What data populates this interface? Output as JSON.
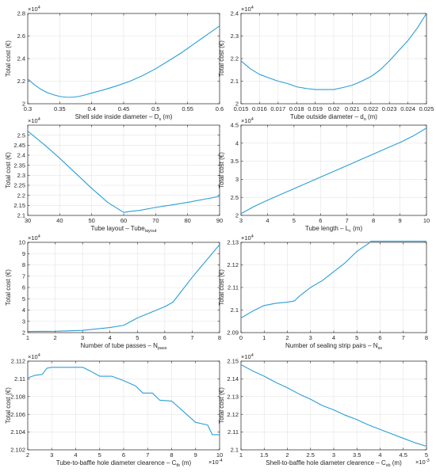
{
  "chart_data": [
    {
      "type": "line",
      "xlabel": "Shell side inside diameter – D",
      "xlabel_sub": "s",
      "xlabel_tail": " (m)",
      "ylabel": "Total cost (€)",
      "y_exponent": "4",
      "xlim": [
        0.3,
        0.6
      ],
      "ylim": [
        2.0,
        2.8
      ],
      "xticks": [
        0.3,
        0.35,
        0.4,
        0.45,
        0.5,
        0.55,
        0.6
      ],
      "xtick_labels": [
        "0.3",
        "0.35",
        "0.4",
        "0.45",
        "0.5",
        "0.55",
        "0.6"
      ],
      "yticks": [
        2.0,
        2.2,
        2.4,
        2.6,
        2.8
      ],
      "ytick_labels": [
        "2",
        "2.2",
        "2.4",
        "2.6",
        "2.8"
      ],
      "grid": true,
      "color": "#2a9fd6",
      "x": [
        0.3,
        0.31,
        0.32,
        0.33,
        0.34,
        0.35,
        0.36,
        0.37,
        0.38,
        0.39,
        0.4,
        0.42,
        0.44,
        0.46,
        0.48,
        0.5,
        0.52,
        0.54,
        0.56,
        0.58,
        0.6
      ],
      "y": [
        2.22,
        2.17,
        2.13,
        2.1,
        2.08,
        2.065,
        2.058,
        2.058,
        2.065,
        2.078,
        2.095,
        2.125,
        2.16,
        2.2,
        2.25,
        2.31,
        2.38,
        2.45,
        2.53,
        2.61,
        2.69
      ]
    },
    {
      "type": "line",
      "xlabel": "Tube outside diameter – d",
      "xlabel_sub": "o",
      "xlabel_tail": " (m)",
      "ylabel": "Total cost (€)",
      "y_exponent": "4",
      "xlim": [
        0.015,
        0.025
      ],
      "ylim": [
        2.0,
        2.4
      ],
      "xticks": [
        0.015,
        0.016,
        0.017,
        0.018,
        0.019,
        0.02,
        0.021,
        0.022,
        0.023,
        0.024,
        0.025
      ],
      "xtick_labels": [
        "0.015",
        "0.016",
        "0.017",
        "0.018",
        "0.019",
        "0.02",
        "0.021",
        "0.022",
        "0.023",
        "0.024",
        "0.025"
      ],
      "yticks": [
        2.0,
        2.1,
        2.2,
        2.3,
        2.4
      ],
      "ytick_labels": [
        "2",
        "2.1",
        "2.2",
        "2.3",
        "2.4"
      ],
      "grid": true,
      "color": "#2a9fd6",
      "x": [
        0.015,
        0.0155,
        0.016,
        0.0165,
        0.017,
        0.0175,
        0.018,
        0.0185,
        0.019,
        0.0195,
        0.02,
        0.0205,
        0.021,
        0.0215,
        0.022,
        0.0225,
        0.023,
        0.0235,
        0.024,
        0.0245,
        0.025
      ],
      "y": [
        2.19,
        2.155,
        2.13,
        2.115,
        2.1,
        2.09,
        2.075,
        2.068,
        2.063,
        2.063,
        2.063,
        2.072,
        2.082,
        2.1,
        2.12,
        2.15,
        2.19,
        2.235,
        2.28,
        2.335,
        2.4
      ]
    },
    {
      "type": "line",
      "xlabel": "Tube layout – Tube",
      "xlabel_sub": "layout",
      "xlabel_tail": "",
      "ylabel": "Total cost (€)",
      "y_exponent": "4",
      "xlim": [
        30,
        90
      ],
      "ylim": [
        2.1,
        2.55
      ],
      "xticks": [
        30,
        40,
        50,
        60,
        70,
        80,
        90
      ],
      "xtick_labels": [
        "30",
        "40",
        "50",
        "60",
        "70",
        "80",
        "90"
      ],
      "yticks": [
        2.1,
        2.15,
        2.2,
        2.25,
        2.3,
        2.35,
        2.4,
        2.45,
        2.5
      ],
      "ytick_labels": [
        "2.1",
        "2.15",
        "2.2",
        "2.25",
        "2.3",
        "2.35",
        "2.4",
        "2.45",
        "2.5"
      ],
      "grid": true,
      "color": "#2a9fd6",
      "x": [
        30,
        35,
        40,
        45,
        50,
        55,
        60,
        62,
        65,
        70,
        75,
        80,
        85,
        90
      ],
      "y": [
        2.52,
        2.455,
        2.385,
        2.31,
        2.235,
        2.165,
        2.115,
        2.12,
        2.125,
        2.14,
        2.152,
        2.165,
        2.18,
        2.195
      ]
    },
    {
      "type": "line",
      "xlabel": "Tube length – L",
      "xlabel_sub": "c",
      "xlabel_tail": " (m)",
      "ylabel": "Total cost (€)",
      "y_exponent": "4",
      "xlim": [
        3,
        10
      ],
      "ylim": [
        2.0,
        4.5
      ],
      "xticks": [
        3,
        4,
        5,
        6,
        7,
        8,
        9,
        10
      ],
      "xtick_labels": [
        "3",
        "4",
        "5",
        "6",
        "7",
        "8",
        "9",
        "10"
      ],
      "yticks": [
        2.0,
        2.5,
        3.0,
        3.5,
        4.0,
        4.5
      ],
      "ytick_labels": [
        "2",
        "2.5",
        "3",
        "3.5",
        "4",
        "4.5"
      ],
      "grid": true,
      "color": "#2a9fd6",
      "x": [
        3,
        3.5,
        4,
        4.5,
        5,
        5.5,
        6,
        6.5,
        7,
        7.5,
        8,
        8.5,
        9,
        9.5,
        10
      ],
      "y": [
        2.05,
        2.25,
        2.42,
        2.58,
        2.74,
        2.9,
        3.06,
        3.22,
        3.38,
        3.54,
        3.7,
        3.86,
        4.02,
        4.2,
        4.42
      ]
    },
    {
      "type": "line",
      "xlabel": "Number of tube passes – N",
      "xlabel_sub": "pass",
      "xlabel_tail": "",
      "ylabel": "Total cost (€)",
      "y_exponent": "4",
      "xlim": [
        1,
        8
      ],
      "ylim": [
        2,
        10
      ],
      "xticks": [
        1,
        2,
        3,
        4,
        5,
        6,
        7,
        8
      ],
      "xtick_labels": [
        "1",
        "2",
        "3",
        "4",
        "5",
        "6",
        "7",
        "8"
      ],
      "yticks": [
        2,
        3,
        4,
        5,
        6,
        7,
        8,
        9,
        10
      ],
      "ytick_labels": [
        "2",
        "3",
        "4",
        "5",
        "6",
        "7",
        "8",
        "9",
        "10"
      ],
      "grid": true,
      "color": "#2a9fd6",
      "x": [
        1,
        2,
        3,
        4,
        4.5,
        5,
        6,
        6.3,
        7,
        8
      ],
      "y": [
        2.1,
        2.12,
        2.2,
        2.45,
        2.65,
        3.3,
        4.3,
        4.7,
        6.9,
        9.8
      ]
    },
    {
      "type": "line",
      "xlabel": "Number of sealing strip pairs – N",
      "xlabel_sub": "ss",
      "xlabel_tail": "",
      "ylabel": "Total cost (€)",
      "y_exponent": "4",
      "xlim": [
        0,
        8
      ],
      "ylim": [
        2.09,
        2.13
      ],
      "xticks": [
        0,
        1,
        2,
        3,
        4,
        5,
        6,
        7,
        8
      ],
      "xtick_labels": [
        "0",
        "1",
        "2",
        "3",
        "4",
        "5",
        "6",
        "7",
        "8"
      ],
      "yticks": [
        2.09,
        2.1,
        2.11,
        2.12,
        2.13
      ],
      "ytick_labels": [
        "2.09",
        "2.1",
        "2.11",
        "2.12",
        "2.13"
      ],
      "grid": true,
      "color": "#2a9fd6",
      "x": [
        0,
        0.5,
        1,
        1.5,
        2,
        2.3,
        2.5,
        3,
        3.5,
        4,
        4.5,
        5,
        5.5,
        5.6,
        6,
        7,
        8
      ],
      "y": [
        2.0965,
        2.0995,
        2.102,
        2.103,
        2.1035,
        2.104,
        2.106,
        2.11,
        2.113,
        2.117,
        2.121,
        2.126,
        2.1295,
        2.1305,
        2.1305,
        2.1305,
        2.1305
      ]
    },
    {
      "type": "line",
      "xlabel": "Tube-to-baffle hole diameter clearence – C",
      "xlabel_sub": "tb",
      "xlabel_tail": " (m)",
      "ylabel": "Total cost (€)",
      "y_exponent": "4",
      "x_exponent": "-4",
      "xlim": [
        2,
        10
      ],
      "ylim": [
        2.102,
        2.112
      ],
      "xticks": [
        2,
        3,
        4,
        5,
        6,
        7,
        8,
        9,
        10
      ],
      "xtick_labels": [
        "2",
        "3",
        "4",
        "5",
        "6",
        "7",
        "8",
        "9",
        "10"
      ],
      "yticks": [
        2.102,
        2.104,
        2.106,
        2.108,
        2.11,
        2.112
      ],
      "ytick_labels": [
        "2.102",
        "2.104",
        "2.106",
        "2.108",
        "2.11",
        "2.112"
      ],
      "grid": true,
      "color": "#2a9fd6",
      "x": [
        2,
        2.3,
        2.6,
        2.8,
        3,
        3.5,
        4,
        4.3,
        4.6,
        5,
        5.5,
        6,
        6.5,
        6.8,
        7.2,
        7.5,
        8,
        8.5,
        9,
        9.5,
        9.7,
        10
      ],
      "y": [
        2.1101,
        2.1104,
        2.1105,
        2.1112,
        2.1113,
        2.1113,
        2.1113,
        2.1113,
        2.1109,
        2.1103,
        2.1103,
        2.1098,
        2.1092,
        2.1084,
        2.1084,
        2.1076,
        2.1075,
        2.1063,
        2.1051,
        2.1048,
        2.1037,
        2.1037
      ]
    },
    {
      "type": "line",
      "xlabel": "Shell-to-baffle hole diameter clearence – C",
      "xlabel_sub": "sb",
      "xlabel_tail": " (m)",
      "ylabel": "Total cost (€)",
      "y_exponent": "4",
      "x_exponent": "-3",
      "xlim": [
        1,
        5
      ],
      "ylim": [
        2.1,
        2.15
      ],
      "xticks": [
        1,
        1.5,
        2,
        2.5,
        3,
        3.5,
        4,
        4.5,
        5
      ],
      "xtick_labels": [
        "1",
        "1.5",
        "2",
        "2.5",
        "3",
        "3.5",
        "4",
        "4.5",
        "5"
      ],
      "yticks": [
        2.1,
        2.11,
        2.12,
        2.13,
        2.14,
        2.15
      ],
      "ytick_labels": [
        "2.1",
        "2.11",
        "2.12",
        "2.13",
        "2.14",
        "2.15"
      ],
      "grid": true,
      "color": "#2a9fd6",
      "x": [
        1,
        1.25,
        1.5,
        1.75,
        2,
        2.25,
        2.5,
        2.75,
        3,
        3.25,
        3.5,
        3.75,
        4,
        4.25,
        4.5,
        4.75,
        5
      ],
      "y": [
        2.148,
        2.1445,
        2.1415,
        2.138,
        2.135,
        2.1315,
        2.1285,
        2.125,
        2.1225,
        2.1195,
        2.117,
        2.114,
        2.1115,
        2.109,
        2.1065,
        2.104,
        2.102
      ]
    }
  ]
}
